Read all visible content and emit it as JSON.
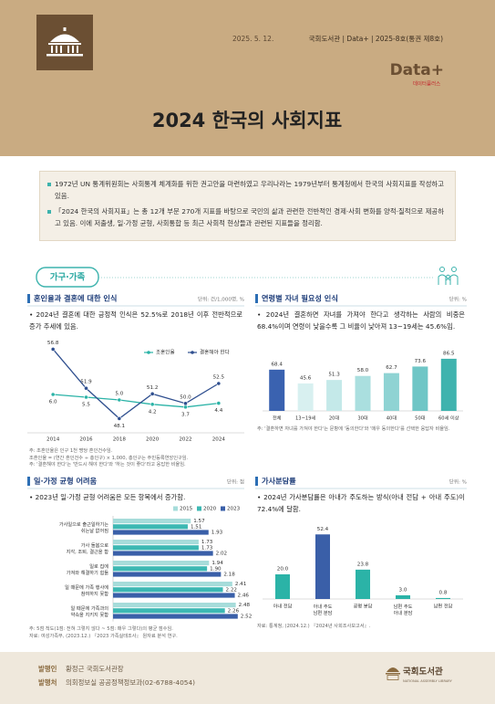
{
  "header": {
    "date": "2025. 5. 12.",
    "publication": "국회도서관 | Data+ | 2025-8호(통권 제8호)",
    "brand": "Data+",
    "brand_sub": "데이터플러스",
    "title": "2024 한국의 사회지표"
  },
  "intro": [
    "1972년 UN 통계위원회는 사회통계 체계화를 위한 권고안을 마련하였고 우리나라는 1979년부터 통계청에서 한국의 사회지표를 작성하고 있음.",
    "「2024 한국의 사회지표」는 총 12개 부문 270개 지표를 바탕으로 국민의 삶과 관련한 전반적인 경제·사회 변화를 양적·질적으로 제공하고 있음. 이에 저출생, 일·가정 균형, 사회통합 등 최근 사회적 현상들과 관련된 지표들을 정리함."
  ],
  "section_title": "가구·가족",
  "chart_data": [
    {
      "type": "line",
      "title": "혼인율과 결혼에 대한 인식",
      "unit": "단위: 건/1,000명, %",
      "summary": "• 2024년 결혼에 대한 긍정적 인식은 52.5%로 2018년 이후 전반적으로 증가 추세에 있음.",
      "x": [
        2014,
        2016,
        2018,
        2020,
        2022,
        2024
      ],
      "xlim": [
        2013,
        2025
      ],
      "xticks": [
        2014,
        2016,
        2018,
        2020,
        2022,
        2024
      ],
      "ylim": [
        47,
        58
      ],
      "y2lim": [
        0,
        16
      ],
      "series": [
        {
          "name": "조혼인율",
          "color": "#2bb3a7",
          "axis": "y2",
          "values": [
            6.0,
            5.5,
            5.0,
            4.2,
            3.7,
            4.4
          ],
          "value_labels": [
            "6.0",
            "5.5",
            "5.0",
            "4.2",
            "3.7",
            "4.4"
          ]
        },
        {
          "name": "결혼해야 한다",
          "color": "#2f4f8f",
          "values": [
            56.8,
            51.9,
            48.1,
            51.2,
            50.0,
            52.5
          ],
          "value_labels": [
            "56.8",
            "51.9",
            "48.1",
            "51.2",
            "50.0",
            "52.5"
          ]
        }
      ],
      "notes": [
        "주: 조혼인율은 인구 1천 명당 혼인건수임.",
        "조혼인율 = (연간 혼인건수 ÷ 총인구) × 1,000, 총인구는 주민등록연앙인구임.",
        "주: '결혼해야 한다'는 '반드시 해야 한다'와 '하는 것이 좋다'라고 응답한 비율임."
      ]
    },
    {
      "type": "bar",
      "title": "연령별 자녀 필요성 인식",
      "unit": "단위: %",
      "summary": "• 2024년 결혼하면 자녀를 가져야 한다고 생각하는 사람의 비중은 68.4%이며 연령이 낮을수록 그 비율이 낮아져 13~19세는 45.6%임.",
      "categories": [
        "전체",
        "13~19세",
        "20대",
        "30대",
        "40대",
        "50대",
        "60세 이상"
      ],
      "values": [
        68.4,
        45.6,
        51.3,
        58.0,
        62.7,
        73.6,
        86.5
      ],
      "value_labels": [
        "68.4",
        "45.6",
        "51.3",
        "58.0",
        "62.7",
        "73.6",
        "86.5"
      ],
      "colors": [
        "#3a62b0",
        "#d8f0f0",
        "#c4e9e9",
        "#aadfdf",
        "#8fd3d3",
        "#6fc6c6",
        "#3fb3ae"
      ],
      "ylim": [
        0,
        100
      ],
      "notes": [
        "주: '결혼하면 자녀를 가져야 한다'는 문항에 '동의한다'와 '매우 동의한다'를 선택한 응답자 비율임."
      ]
    },
    {
      "type": "bar",
      "orientation": "horizontal",
      "title": "일·가정 균형 어려움",
      "unit": "단위: 점",
      "summary": "• 2023년 일·가정 균형 어려움은 모든 항목에서 증가함.",
      "categories": [
        "가사일으로 출근일하기는\n쉬는날 없어짐",
        "가사 돌봄으로\n지각, 조퇴, 결근을 함",
        "일로 집에\n가져와 해결하기 힘듦",
        "일 때문에 가족 행사에\n참여하지 못함",
        "일 때문에 가족과의\n약속을 지키지 못함"
      ],
      "series": [
        {
          "name": "2015",
          "color": "#a6dcda",
          "values": [
            1.57,
            1.73,
            1.94,
            2.41,
            2.48
          ],
          "value_labels": [
            "1.57",
            "1.73",
            "1.94",
            "2.41",
            "2.48"
          ]
        },
        {
          "name": "2020",
          "color": "#3db8b3",
          "values": [
            1.51,
            1.73,
            1.9,
            2.22,
            2.26
          ],
          "value_labels": [
            "1.51",
            "1.73",
            "1.90",
            "2.22",
            "2.26"
          ]
        },
        {
          "name": "2023",
          "color": "#3a5fa8",
          "values": [
            1.93,
            2.02,
            2.18,
            2.46,
            2.52
          ],
          "value_labels": [
            "1.93",
            "2.02",
            "2.18",
            "2.46",
            "2.52"
          ]
        }
      ],
      "xlim": [
        0,
        2.8
      ],
      "notes": [
        "주: 5점 척도(1점: 전혀 그렇지 않다 ~ 5점: 매우 그렇다)의 평균 점수임.",
        "자료: 여성가족부, (2023.12.) 『2023 가족실태조사』 원자료 분석 연구."
      ]
    },
    {
      "type": "bar",
      "title": "가사분담률",
      "unit": "단위: %",
      "summary": "• 2024년 가사분담률은 아내가 주도하는 방식(아내 전담 + 아내 주도)이 72.4%에 달함.",
      "categories": [
        "아내 전담",
        "아내 주도\n남편 분담",
        "공평 분담",
        "남편 주도\n아내 분담",
        "남편 전담"
      ],
      "values": [
        20.0,
        52.4,
        23.8,
        3.0,
        0.8
      ],
      "value_labels": [
        "20.0",
        "52.4",
        "23.8",
        "3.0",
        "0.8"
      ],
      "colors": [
        "#2bb3a7",
        "#3a5fa8",
        "#2bb3a7",
        "#2bb3a7",
        "#2bb3a7"
      ],
      "ylim": [
        0,
        60
      ],
      "notes": [
        "자료: 통계청, (2024.12.) 『2024년 사회조사보고서』."
      ]
    }
  ],
  "footer": {
    "publisher_label": "발행인",
    "publisher": "황정근 국회도서관장",
    "issuer_label": "발행처",
    "issuer": "의회정보실 공공정책정보과(02-6788-4054)",
    "logo": "국회도서관",
    "logo_sub": "NATIONAL ASSEMBLY LIBRARY"
  }
}
